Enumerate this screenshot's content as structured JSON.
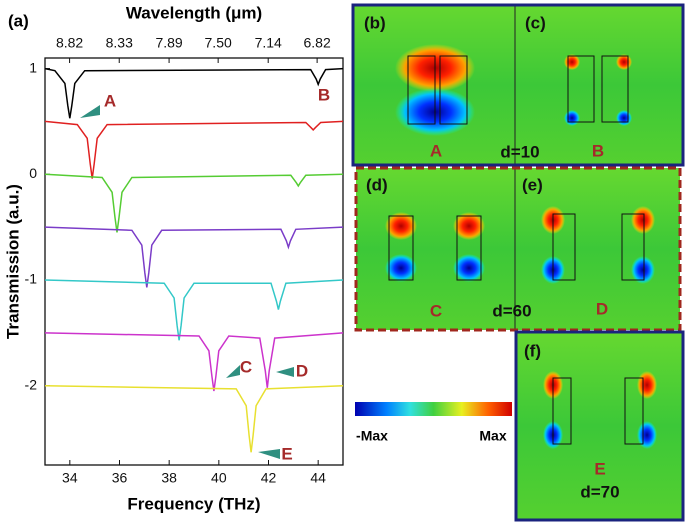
{
  "chart_data": {
    "type": "line",
    "panel_label": "(a)",
    "x_label": "Frequency (THz)",
    "y_label": "Transmission (a.u.)",
    "x2_label": "Wavelength (μm)",
    "xlim": [
      33,
      45
    ],
    "xticks": [
      34,
      36,
      38,
      40,
      42,
      44
    ],
    "x2ticks": [
      8.82,
      8.33,
      7.89,
      {
        "value": 7.5,
        "label": "7.50"
      },
      7.14,
      6.82
    ],
    "ylim": [
      -2.75,
      1.1
    ],
    "yticks": [
      1,
      0,
      -1,
      -2
    ],
    "series": [
      {
        "color": "#000000",
        "x": [
          33,
          33.4,
          33.8,
          33.92,
          34,
          34.08,
          34.2,
          34.6,
          43.7,
          43.92,
          44,
          44.08,
          44.3,
          45
        ],
        "values": [
          1,
          0.98,
          0.86,
          0.65,
          0.53,
          0.65,
          0.86,
          0.98,
          0.99,
          0.9,
          0.85,
          0.9,
          0.99,
          1
        ]
      },
      {
        "color": "#e02020",
        "x": [
          33,
          34.3,
          34.7,
          34.82,
          34.9,
          34.98,
          35.1,
          35.5,
          43.5,
          43.72,
          43.8,
          43.88,
          44.1,
          45
        ],
        "values": [
          0.5,
          0.47,
          0.34,
          0.1,
          -0.04,
          0.1,
          0.34,
          0.47,
          0.49,
          0.44,
          0.42,
          0.44,
          0.49,
          0.5
        ]
      },
      {
        "color": "#55cc33",
        "x": [
          33,
          35.3,
          35.7,
          35.82,
          35.9,
          35.98,
          36.1,
          36.5,
          42.9,
          43.12,
          43.2,
          43.28,
          43.5,
          45
        ],
        "values": [
          0,
          -0.03,
          -0.17,
          -0.41,
          -0.55,
          -0.41,
          -0.17,
          -0.03,
          -0.01,
          -0.08,
          -0.11,
          -0.08,
          -0.01,
          0
        ]
      },
      {
        "color": "#7a3cc8",
        "x": [
          33,
          36.5,
          36.9,
          37.02,
          37.1,
          37.18,
          37.3,
          37.7,
          42.5,
          42.72,
          42.8,
          42.88,
          43.1,
          45
        ],
        "values": [
          -0.5,
          -0.53,
          -0.67,
          -0.93,
          -1.07,
          -0.93,
          -0.67,
          -0.53,
          -0.52,
          -0.63,
          -0.69,
          -0.63,
          -0.52,
          -0.5
        ]
      },
      {
        "color": "#33c8c8",
        "x": [
          33,
          37.8,
          38.2,
          38.32,
          38.4,
          38.48,
          38.6,
          39,
          42.1,
          42.32,
          42.4,
          42.48,
          42.7,
          45
        ],
        "values": [
          -1,
          -1.03,
          -1.17,
          -1.43,
          -1.57,
          -1.43,
          -1.17,
          -1.03,
          -1.03,
          -1.2,
          -1.28,
          -1.2,
          -1.03,
          -1
        ]
      },
      {
        "color": "#cc33cc",
        "x": [
          33,
          39.2,
          39.6,
          39.72,
          39.8,
          39.88,
          40,
          40.4,
          41.65,
          41.87,
          41.95,
          42.03,
          42.25,
          45
        ],
        "values": [
          -1.5,
          -1.53,
          -1.67,
          -1.91,
          -2.05,
          -1.91,
          -1.67,
          -1.53,
          -1.55,
          -1.86,
          -2.02,
          -1.86,
          -1.55,
          -1.5
        ]
      },
      {
        "color": "#e8e030",
        "x": [
          33,
          40.7,
          41.1,
          41.22,
          41.3,
          41.38,
          41.5,
          41.9,
          45
        ],
        "values": [
          -2,
          -2.03,
          -2.19,
          -2.47,
          -2.63,
          -2.47,
          -2.19,
          -2.03,
          -2
        ]
      }
    ],
    "annotations": [
      "A",
      "B",
      "C",
      "D",
      "E"
    ]
  },
  "field_maps": {
    "panels": [
      "(b)",
      "(c)",
      "(d)",
      "(e)",
      "(f)"
    ],
    "modes": [
      "A",
      "B",
      "C",
      "D",
      "E"
    ],
    "separations": [
      "d=10",
      "d=60",
      "d=70"
    ]
  },
  "colorbar": {
    "min_label": "-Max",
    "max_label": "Max"
  }
}
